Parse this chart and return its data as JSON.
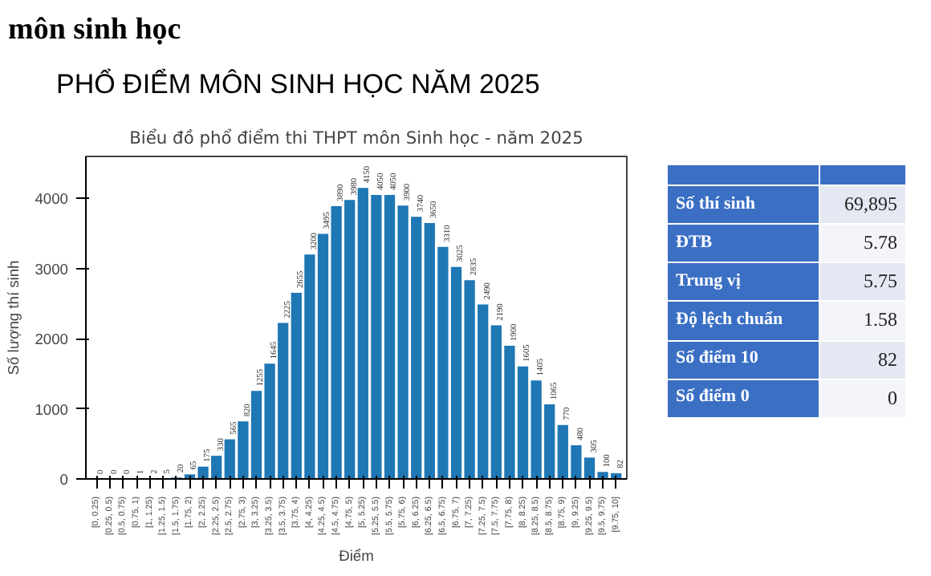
{
  "chart_data": [
    {
      "type": "bar",
      "title": "Biểu đồ phổ điểm thi THPT môn Sinh học - năm 2025",
      "xlabel": "Điểm",
      "ylabel": "Số lượng thí sinh",
      "annotations": [
        "môn sinh học",
        "PHỔ ĐIỂM MÔN SINH HỌC NĂM 2025"
      ],
      "categories": [
        "[0, 0.25)",
        "[0.25, 0.5)",
        "[0.5, 0.75)",
        "[0.75, 1)",
        "[1, 1.25)",
        "[1.25, 1.5)",
        "[1.5, 1.75)",
        "[1.75, 2)",
        "[2, 2.25)",
        "[2.25, 2.5)",
        "[2.5, 2.75)",
        "[2.75, 3)",
        "[3, 3.25)",
        "[3.25, 3.5)",
        "[3.5, 3.75)",
        "[3.75, 4)",
        "[4, 4.25)",
        "[4.25, 4.5)",
        "[4.5, 4.75)",
        "[4.75, 5)",
        "[5, 5.25)",
        "[5.25, 5.5)",
        "[5.5, 5.75)",
        "[5.75, 6)",
        "[6, 6.25)",
        "[6.25, 6.5)",
        "[6.5, 6.75)",
        "[6.75, 7)",
        "[7, 7.25)",
        "[7.25, 7.5)",
        "[7.5, 7.75)",
        "[7.75, 8)",
        "[8, 8.25)",
        "[8.25, 8.5)",
        "[8.5, 8.75)",
        "[8.75, 9)",
        "[9, 9.25)",
        "[9.25, 9.5)",
        "[9.5, 9.75)",
        "[9.75, 10]"
      ],
      "values": [
        0,
        0,
        0,
        1,
        2,
        5,
        20,
        65,
        175,
        330,
        565,
        820,
        1255,
        1645,
        2225,
        2655,
        3200,
        3495,
        3890,
        3980,
        4150,
        4050,
        4050,
        3900,
        3740,
        3650,
        3310,
        3025,
        2835,
        2490,
        2190,
        1900,
        1605,
        1405,
        1065,
        770,
        480,
        305,
        100,
        82
      ],
      "color": "#1f77b4",
      "data_labels": true,
      "ylim": [
        0,
        4600
      ],
      "yticks": [
        0,
        1000,
        2000,
        3000,
        4000
      ],
      "grid": false
    },
    {
      "type": "other",
      "categories": [
        "Số thí sinh",
        "ĐTB",
        "Trung vị",
        "Độ lệch chuẩn",
        "Số điểm 10",
        "Số điểm 0"
      ],
      "value_labels": [
        "69,895",
        "5.78",
        "5.75",
        "1.58",
        "82",
        "0"
      ]
    }
  ]
}
